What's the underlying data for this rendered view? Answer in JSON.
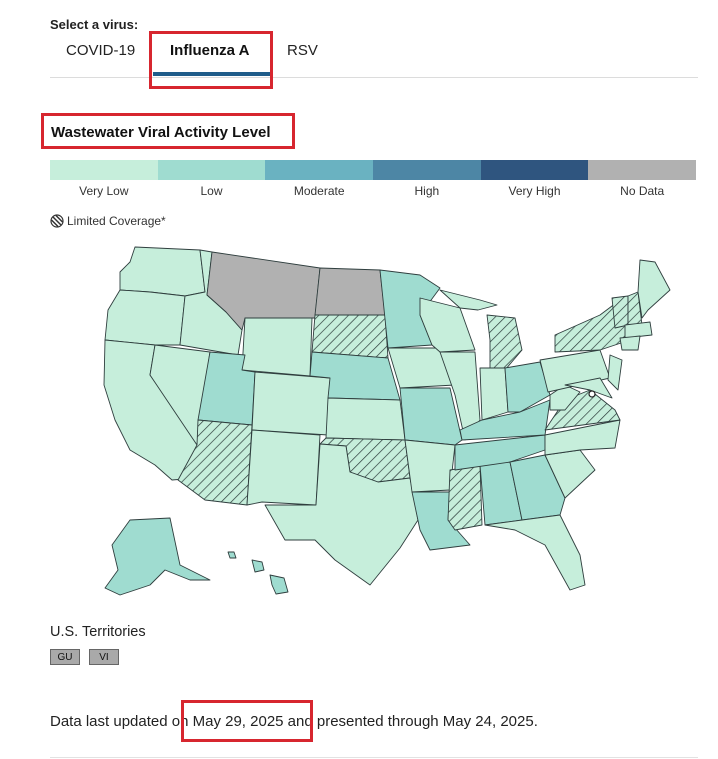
{
  "selector": {
    "label": "Select a virus:",
    "tabs": [
      "COVID-19",
      "Influenza A",
      "RSV"
    ],
    "active_tab": "Influenza A"
  },
  "title": "Wastewater Viral Activity Level",
  "legend": [
    {
      "label": "Very Low",
      "color": "#c6eedb"
    },
    {
      "label": "Low",
      "color": "#9fdcd0"
    },
    {
      "label": "Moderate",
      "color": "#6ab2c1"
    },
    {
      "label": "High",
      "color": "#4d86a5"
    },
    {
      "label": "Very High",
      "color": "#2f557f"
    },
    {
      "label": "No Data",
      "color": "#b1b1b1"
    }
  ],
  "coverage_note": "Limited Coverage*",
  "territories": {
    "title": "U.S. Territories",
    "items": [
      "GU",
      "VI"
    ]
  },
  "updated": {
    "prefix": "Data last updated on ",
    "date": "May 29, 2025",
    "suffix": " and presented through May 24, 2025."
  }
}
